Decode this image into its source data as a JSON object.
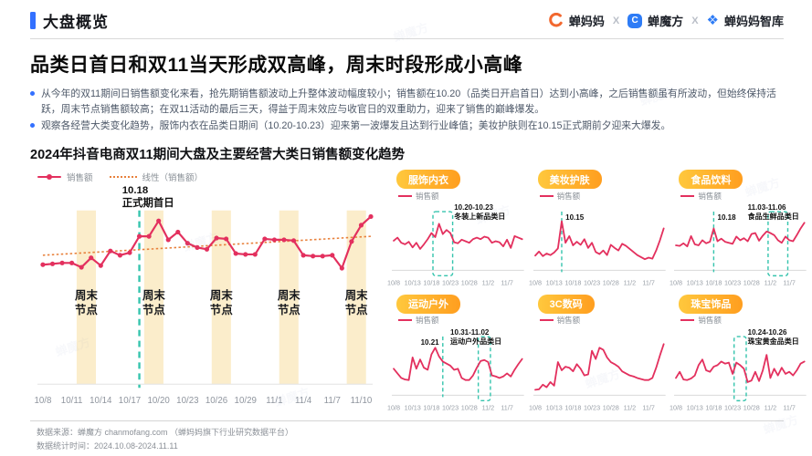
{
  "colors": {
    "accent_blue": "#3370FF",
    "pink": "#E3305E",
    "trend_orange": "#E8813C",
    "teal": "#35C4AD",
    "band_yellow": "#FBEDCB",
    "axis_gray": "#8f959e",
    "band_label_dark": "#16181d"
  },
  "header": {
    "section_label": "大盘概览",
    "logos": [
      "蝉妈妈",
      "蝉魔方",
      "蝉妈妈智库"
    ],
    "separator": "X",
    "logo_c": "C"
  },
  "watermark": "蝉魔方",
  "title": "品类日首日和双11当天形成双高峰，周末时段形成小高峰",
  "bullets": [
    "从今年的双11期间日销售额变化来看，抢先期销售额波动上升整体波动幅度较小；销售额在10.20（品类日开启首日）达到小高峰，之后销售额虽有所波动，但始终保持活跃，周末节点销售额较高；在双11活动的最后三天，得益于周末效应与收官日的双重助力，迎来了销售的巅峰爆发。",
    "观察各经营大类变化趋势，服饰内衣在品类日期间（10.20-10.23）迎来第一波爆发且达到行业峰值；美妆护肤则在10.15正式期前夕迎来大爆发。"
  ],
  "chart_section_title": "2024年抖音电商双11期间大盘及主要经营大类日销售额变化趋势",
  "chart_data": [
    {
      "type": "line",
      "legend": [
        "销售额",
        "线性（销售额）"
      ],
      "x": [
        "10/8",
        "10/9",
        "10/10",
        "10/11",
        "10/12",
        "10/13",
        "10/14",
        "10/15",
        "10/16",
        "10/17",
        "10/18",
        "10/19",
        "10/20",
        "10/21",
        "10/22",
        "10/23",
        "10/24",
        "10/25",
        "10/26",
        "10/27",
        "10/28",
        "10/29",
        "10/30",
        "10/31",
        "11/1",
        "11/2",
        "11/3",
        "11/4",
        "11/5",
        "11/6",
        "11/7",
        "11/8",
        "11/9",
        "11/10",
        "11/11"
      ],
      "tick_days": [
        0,
        3,
        6,
        9,
        12,
        15,
        18,
        21,
        24,
        27,
        30,
        33
      ],
      "tick_labels": [
        "10/8",
        "10/11",
        "10/14",
        "10/17",
        "10/20",
        "10/23",
        "10/26",
        "10/29",
        "11/1",
        "11/4",
        "11/7",
        "11/10"
      ],
      "values": [
        19,
        20,
        21,
        21,
        16,
        27,
        18,
        35,
        30,
        33,
        52,
        52,
        70,
        48,
        57,
        44,
        39,
        37,
        50,
        49,
        32,
        31,
        31,
        49,
        48,
        48,
        47,
        30,
        29,
        29,
        30,
        15,
        46,
        65,
        75
      ],
      "trend": {
        "start": 30,
        "end": 52
      },
      "weekend_bands": [
        [
          4,
          5
        ],
        [
          11,
          12
        ],
        [
          18,
          19
        ],
        [
          25,
          26
        ],
        [
          32,
          33
        ]
      ],
      "weekend_label": [
        "周末",
        "节点"
      ],
      "annotation": {
        "day": 10,
        "label": "10.18",
        "sublabel": "正式期首日"
      }
    },
    {
      "type": "line",
      "name": "服饰内衣",
      "legend": "销售额",
      "tick_days": [
        0,
        5,
        10,
        15,
        20,
        25,
        30
      ],
      "tick_labels": [
        "10/8",
        "10/13",
        "10/18",
        "10/23",
        "10/28",
        "11/2",
        "11/7"
      ],
      "values": [
        54,
        60,
        50,
        47,
        52,
        41,
        50,
        38,
        47,
        57,
        69,
        61,
        87,
        67,
        75,
        69,
        51,
        49,
        56,
        53,
        50,
        57,
        60,
        57,
        62,
        60,
        50,
        53,
        51,
        43,
        56,
        40,
        63,
        60,
        57
      ],
      "annotations": [
        {
          "kind": "box",
          "from_day": 11,
          "to_day": 15,
          "label": "10.20-10.23",
          "sublabel": "冬装上新品类日",
          "label_day": 16,
          "anchor": "start",
          "row": 0
        }
      ]
    },
    {
      "type": "line",
      "name": "美妆护肤",
      "legend": "销售额",
      "tick_days": [
        0,
        5,
        10,
        15,
        20,
        25,
        30
      ],
      "tick_labels": [
        "10/8",
        "10/13",
        "10/18",
        "10/23",
        "10/28",
        "11/2",
        "11/7"
      ],
      "values": [
        25,
        33,
        24,
        29,
        26,
        31,
        39,
        92,
        50,
        63,
        45,
        52,
        46,
        57,
        40,
        50,
        32,
        28,
        35,
        26,
        46,
        40,
        35,
        48,
        44,
        38,
        32,
        26,
        22,
        18,
        21,
        19,
        35,
        55,
        78
      ],
      "annotations": [
        {
          "kind": "line",
          "day": 7,
          "label": "10.15",
          "label_day": 8,
          "anchor": "start",
          "row": 1
        }
      ]
    },
    {
      "type": "line",
      "name": "食品饮料",
      "legend": "销售额",
      "tick_days": [
        0,
        5,
        10,
        15,
        20,
        25,
        30
      ],
      "tick_labels": [
        "10/8",
        "10/13",
        "10/18",
        "10/23",
        "10/28",
        "11/2",
        "11/7"
      ],
      "values": [
        45,
        44,
        49,
        43,
        63,
        47,
        45,
        55,
        49,
        52,
        78,
        53,
        58,
        52,
        50,
        48,
        62,
        55,
        59,
        53,
        67,
        69,
        54,
        64,
        72,
        69,
        65,
        55,
        50,
        62,
        55,
        53,
        65,
        78,
        89
      ],
      "annotations": [
        {
          "kind": "line",
          "day": 10,
          "label": "10.18",
          "label_day": 11,
          "anchor": "start",
          "row": 1
        },
        {
          "kind": "box",
          "from_day": 25,
          "to_day": 29,
          "label": "11.03-11.06",
          "sublabel": "食品生鲜品类日",
          "label_day": 19,
          "anchor": "start",
          "row": 0
        }
      ]
    },
    {
      "type": "line",
      "name": "运动户外",
      "legend": "销售额",
      "tick_days": [
        0,
        5,
        10,
        15,
        20,
        25,
        30
      ],
      "tick_labels": [
        "10/8",
        "10/13",
        "10/18",
        "10/23",
        "10/28",
        "11/2",
        "11/7"
      ],
      "values": [
        48,
        39,
        30,
        27,
        26,
        70,
        48,
        66,
        50,
        46,
        76,
        89,
        72,
        62,
        58,
        54,
        46,
        48,
        30,
        26,
        26,
        35,
        50,
        63,
        65,
        61,
        35,
        33,
        30,
        33,
        39,
        33,
        46,
        57,
        67
      ],
      "annotations": [
        {
          "kind": "line",
          "day": 13,
          "label": "10.21",
          "label_day": 12,
          "anchor": "end",
          "row": 1
        },
        {
          "kind": "box",
          "from_day": 23,
          "to_day": 25,
          "label": "10.31-11.02",
          "sublabel": "运动户外品类日",
          "label_day": 15,
          "anchor": "start",
          "row": 0
        }
      ]
    },
    {
      "type": "line",
      "name": "3C数码",
      "legend": "销售额",
      "tick_days": [
        0,
        5,
        10,
        15,
        20,
        25,
        30
      ],
      "tick_labels": [
        "10/8",
        "10/13",
        "10/18",
        "10/23",
        "10/28",
        "11/2",
        "11/7"
      ],
      "values": [
        7,
        8,
        17,
        12,
        22,
        15,
        61,
        45,
        52,
        50,
        43,
        57,
        48,
        35,
        37,
        83,
        67,
        89,
        85,
        70,
        61,
        57,
        52,
        43,
        39,
        35,
        33,
        30,
        28,
        26,
        26,
        30,
        50,
        74,
        96
      ],
      "annotations": []
    },
    {
      "type": "line",
      "name": "珠宝饰品",
      "legend": "销售额",
      "tick_days": [
        0,
        5,
        10,
        15,
        20,
        25,
        30
      ],
      "tick_labels": [
        "10/8",
        "10/13",
        "10/18",
        "10/23",
        "10/28",
        "11/2",
        "11/7"
      ],
      "values": [
        30,
        42,
        27,
        26,
        29,
        35,
        55,
        66,
        45,
        42,
        52,
        55,
        62,
        58,
        60,
        38,
        60,
        55,
        48,
        22,
        25,
        42,
        24,
        45,
        75,
        30,
        48,
        35,
        50,
        38,
        42,
        35,
        45,
        58,
        62
      ],
      "annotations": [
        {
          "kind": "box",
          "from_day": 16,
          "to_day": 18,
          "label": "10.24-10.26",
          "sublabel": "珠宝黄金品类日",
          "label_day": 19,
          "anchor": "start",
          "row": 0
        }
      ]
    }
  ],
  "footer": {
    "source": "数据来源：蝉魔方 chanmofang.com （蝉妈妈旗下行业研究数据平台）",
    "period": "数据统计时间：2024.10.08-2024.11.11"
  }
}
